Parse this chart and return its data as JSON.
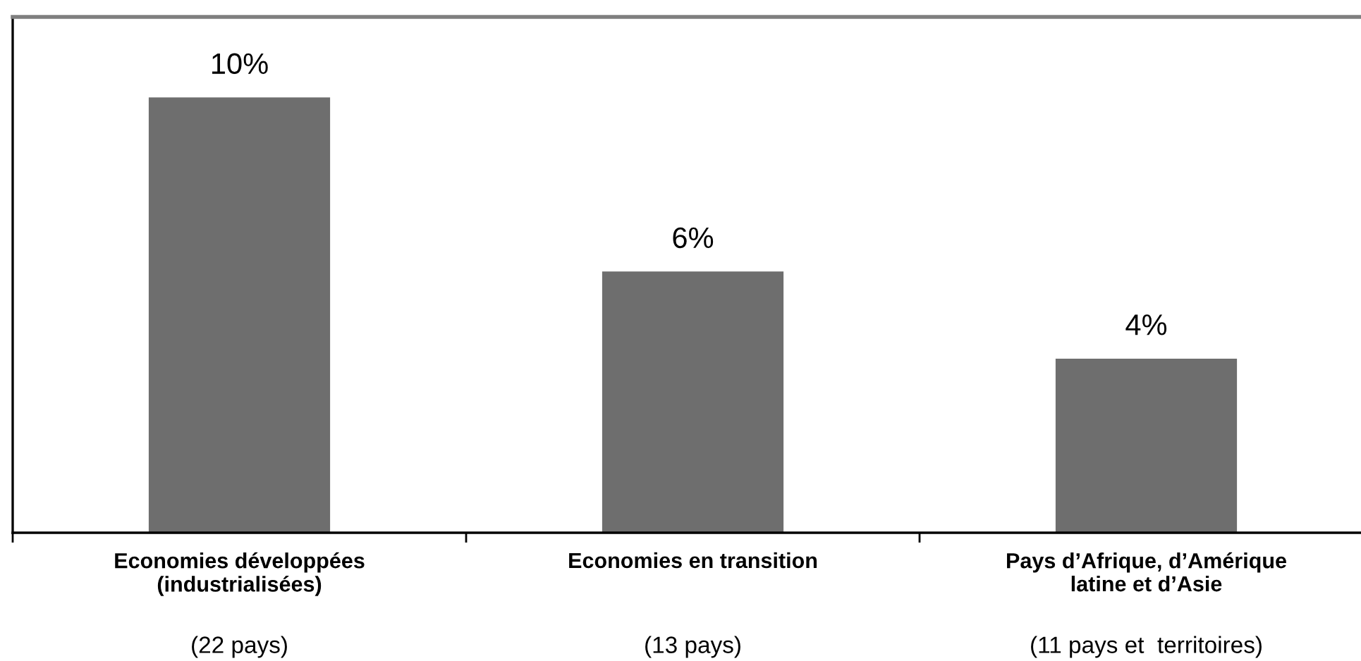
{
  "chart_data": {
    "type": "bar",
    "categories": [
      "Economies développées\n(industrialisées)",
      "Economies en transition",
      "Pays d’Afrique, d’Amérique\nlatine et d’Asie"
    ],
    "values": [
      10,
      6,
      4
    ],
    "value_labels": [
      "10%",
      "6%",
      "4%"
    ],
    "color": "#6e6e6e",
    "annotations": [
      "(22 pays)",
      "(13 pays)",
      "(11 pays et  territoires)"
    ],
    "grid": false,
    "legend": false
  }
}
